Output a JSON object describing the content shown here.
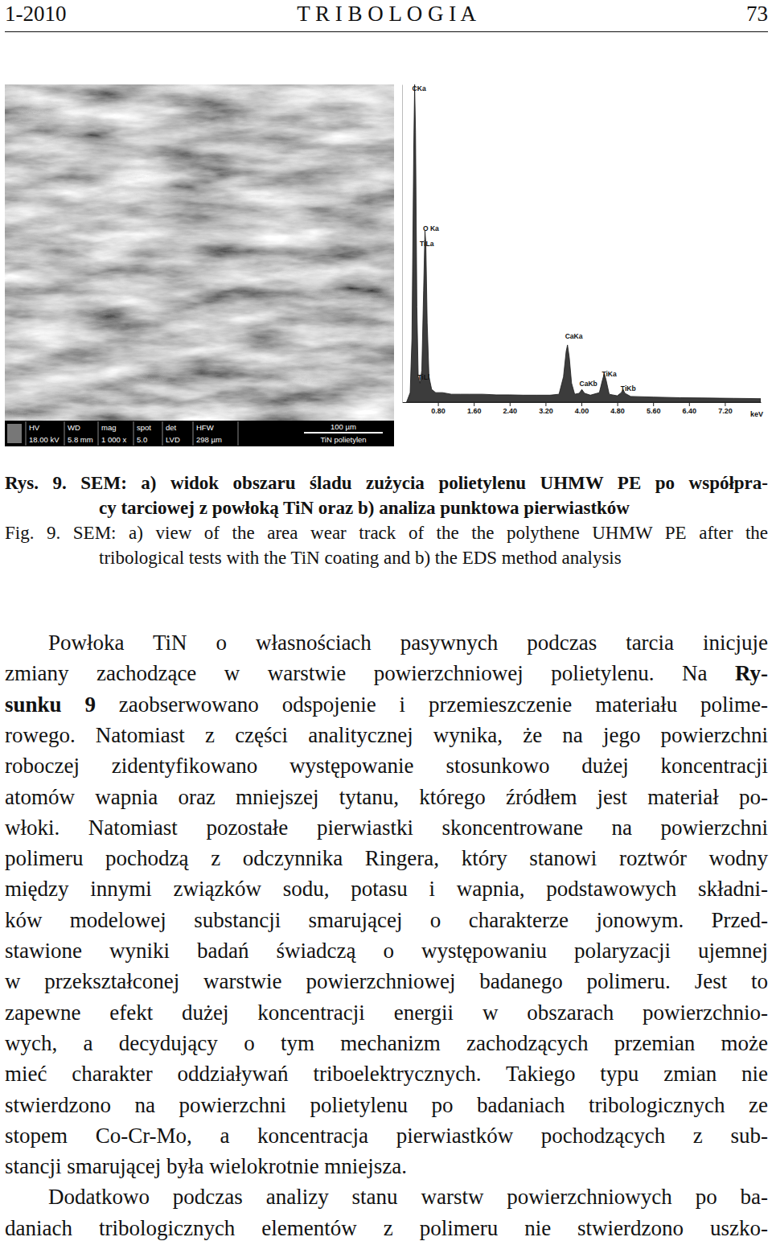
{
  "header": {
    "left": "1-2010",
    "center": "T R I B O L O G I A",
    "right": "73"
  },
  "sem_image": {
    "info_labels": [
      "HV",
      "WD",
      "mag",
      "spot",
      "det",
      "HFW"
    ],
    "info_values": [
      "18.00 kV",
      "5.8 mm",
      "1 000 x",
      "5.0",
      "LVD",
      "298 µm"
    ],
    "scale_bar": "100 µm",
    "caption": "TiN polietylen"
  },
  "chart_data": {
    "type": "area",
    "color": "#3c3c3c",
    "x": [
      0.1,
      0.18,
      0.22,
      0.26,
      0.28,
      0.3,
      0.33,
      0.36,
      0.4,
      0.44,
      0.48,
      0.51,
      0.53,
      0.56,
      0.6,
      0.66,
      0.75,
      0.9,
      1.1,
      1.3,
      1.5,
      1.8,
      2.1,
      2.4,
      2.7,
      3.0,
      3.3,
      3.5,
      3.6,
      3.66,
      3.69,
      3.73,
      3.78,
      3.85,
      3.95,
      4.01,
      4.07,
      4.2,
      4.4,
      4.47,
      4.51,
      4.55,
      4.62,
      4.8,
      4.89,
      4.93,
      4.97,
      5.1,
      5.6,
      6.2,
      6.8,
      7.4,
      8.0
    ],
    "values": [
      0,
      3,
      20,
      80,
      100,
      85,
      30,
      8,
      6,
      10,
      35,
      54,
      50,
      25,
      8,
      4,
      3,
      3,
      2.5,
      2.5,
      2.5,
      2.5,
      2.3,
      2.3,
      2.2,
      2.2,
      2.2,
      2.5,
      8,
      16,
      18,
      14,
      6,
      2.5,
      2.8,
      4,
      2.8,
      2.2,
      3,
      7,
      9,
      7,
      2.5,
      2,
      3,
      4,
      2.8,
      1.8,
      1.6,
      1.4,
      1.3,
      1.2,
      1.1
    ],
    "xlim": [
      0,
      8
    ],
    "xticks": [
      {
        "value": 0.8,
        "label": "0.80"
      },
      {
        "value": 1.6,
        "label": "1.60"
      },
      {
        "value": 2.4,
        "label": "2.40"
      },
      {
        "value": 3.2,
        "label": "3.20"
      },
      {
        "value": 4.0,
        "label": "4.00"
      },
      {
        "value": 4.8,
        "label": "4.80"
      },
      {
        "value": 5.6,
        "label": "5.60"
      },
      {
        "value": 6.4,
        "label": "6.40"
      },
      {
        "value": 7.2,
        "label": "7.20"
      }
    ],
    "ylim": [
      0,
      100
    ],
    "tick_labels": "x",
    "x_label": "keV",
    "annotations": [
      {
        "text": "CKa",
        "x": 0.28,
        "y": 98
      },
      {
        "text": "O Ka",
        "x": 0.52,
        "y": 54
      },
      {
        "text": "TiLa",
        "x": 0.45,
        "y": 49
      },
      {
        "text": "TiLl",
        "x": 0.4,
        "y": 7
      },
      {
        "text": "CaKa",
        "x": 3.69,
        "y": 20
      },
      {
        "text": "CaKb",
        "x": 4.01,
        "y": 5
      },
      {
        "text": "TiKa",
        "x": 4.51,
        "y": 8
      },
      {
        "text": "TiKb",
        "x": 4.93,
        "y": 3.5
      }
    ]
  },
  "caption_pl": [
    "Rys. 9. SEM: a) widok obszaru śladu zużycia polietylenu UHMW PE po współpra-",
    "cy tarciowej z powłoką TiN  oraz b) analiza punktowa pierwiastków"
  ],
  "caption_en": [
    "Fig. 9. SEM: a) view of the area wear track of the the polythene UHMW PE after the",
    "tribological tests with the TiN coating and b) the EDS method analysis"
  ],
  "body": [
    [
      [
        "Powłoka TiN o własnościach pasywnych podczas tarcia inicjuje"
      ],
      [
        "zmiany zachodzące w warstwie powierzchniowej polietylenu. Na ",
        {
          "b": "Ry-"
        }
      ],
      [
        {
          "b": "sunku 9"
        },
        " zaobserwowano odspojenie i przemieszczenie materiału polime-"
      ],
      [
        "rowego. Natomiast z części analitycznej wynika, że na jego powierzchni"
      ],
      [
        "roboczej zidentyfikowano występowanie stosunkowo dużej koncentracji"
      ],
      [
        "atomów wapnia oraz mniejszej tytanu, którego źródłem jest materiał po-"
      ],
      [
        "włoki. Natomiast pozostałe pierwiastki skoncentrowane na powierzchni"
      ],
      [
        "polimeru pochodzą z odczynnika Ringera, który stanowi roztwór wodny"
      ],
      [
        "między innymi związków sodu, potasu i wapnia, podstawowych składni-"
      ],
      [
        "ków  modelowej substancji smarującej o charakterze jonowym. Przed-"
      ],
      [
        "stawione wyniki badań świadczą o występowaniu polaryzacji ujemnej"
      ],
      [
        "w przekształconej warstwie powierzchniowej badanego polimeru. Jest to"
      ],
      [
        "zapewne efekt dużej koncentracji energii w obszarach powierzchnio-"
      ],
      [
        "wych, a decydujący o tym mechanizm zachodzących przemian może"
      ],
      [
        "mieć charakter oddziaływań triboelektrycznych. Takiego typu zmian nie"
      ],
      [
        "stwierdzono na powierzchni polietylenu po badaniach tribologicznych  ze"
      ],
      [
        "stopem Co-Cr-Mo, a koncentracja pierwiastków pochodzących z sub-"
      ],
      [
        "stancji smarującej była wielokrotnie mniejsza."
      ]
    ],
    [
      [
        "Dodatkowo podczas analizy stanu warstw powierzchniowych po ba-"
      ],
      [
        "daniach tribologicznych elementów z polimeru nie stwierdzono uszko-"
      ]
    ]
  ]
}
